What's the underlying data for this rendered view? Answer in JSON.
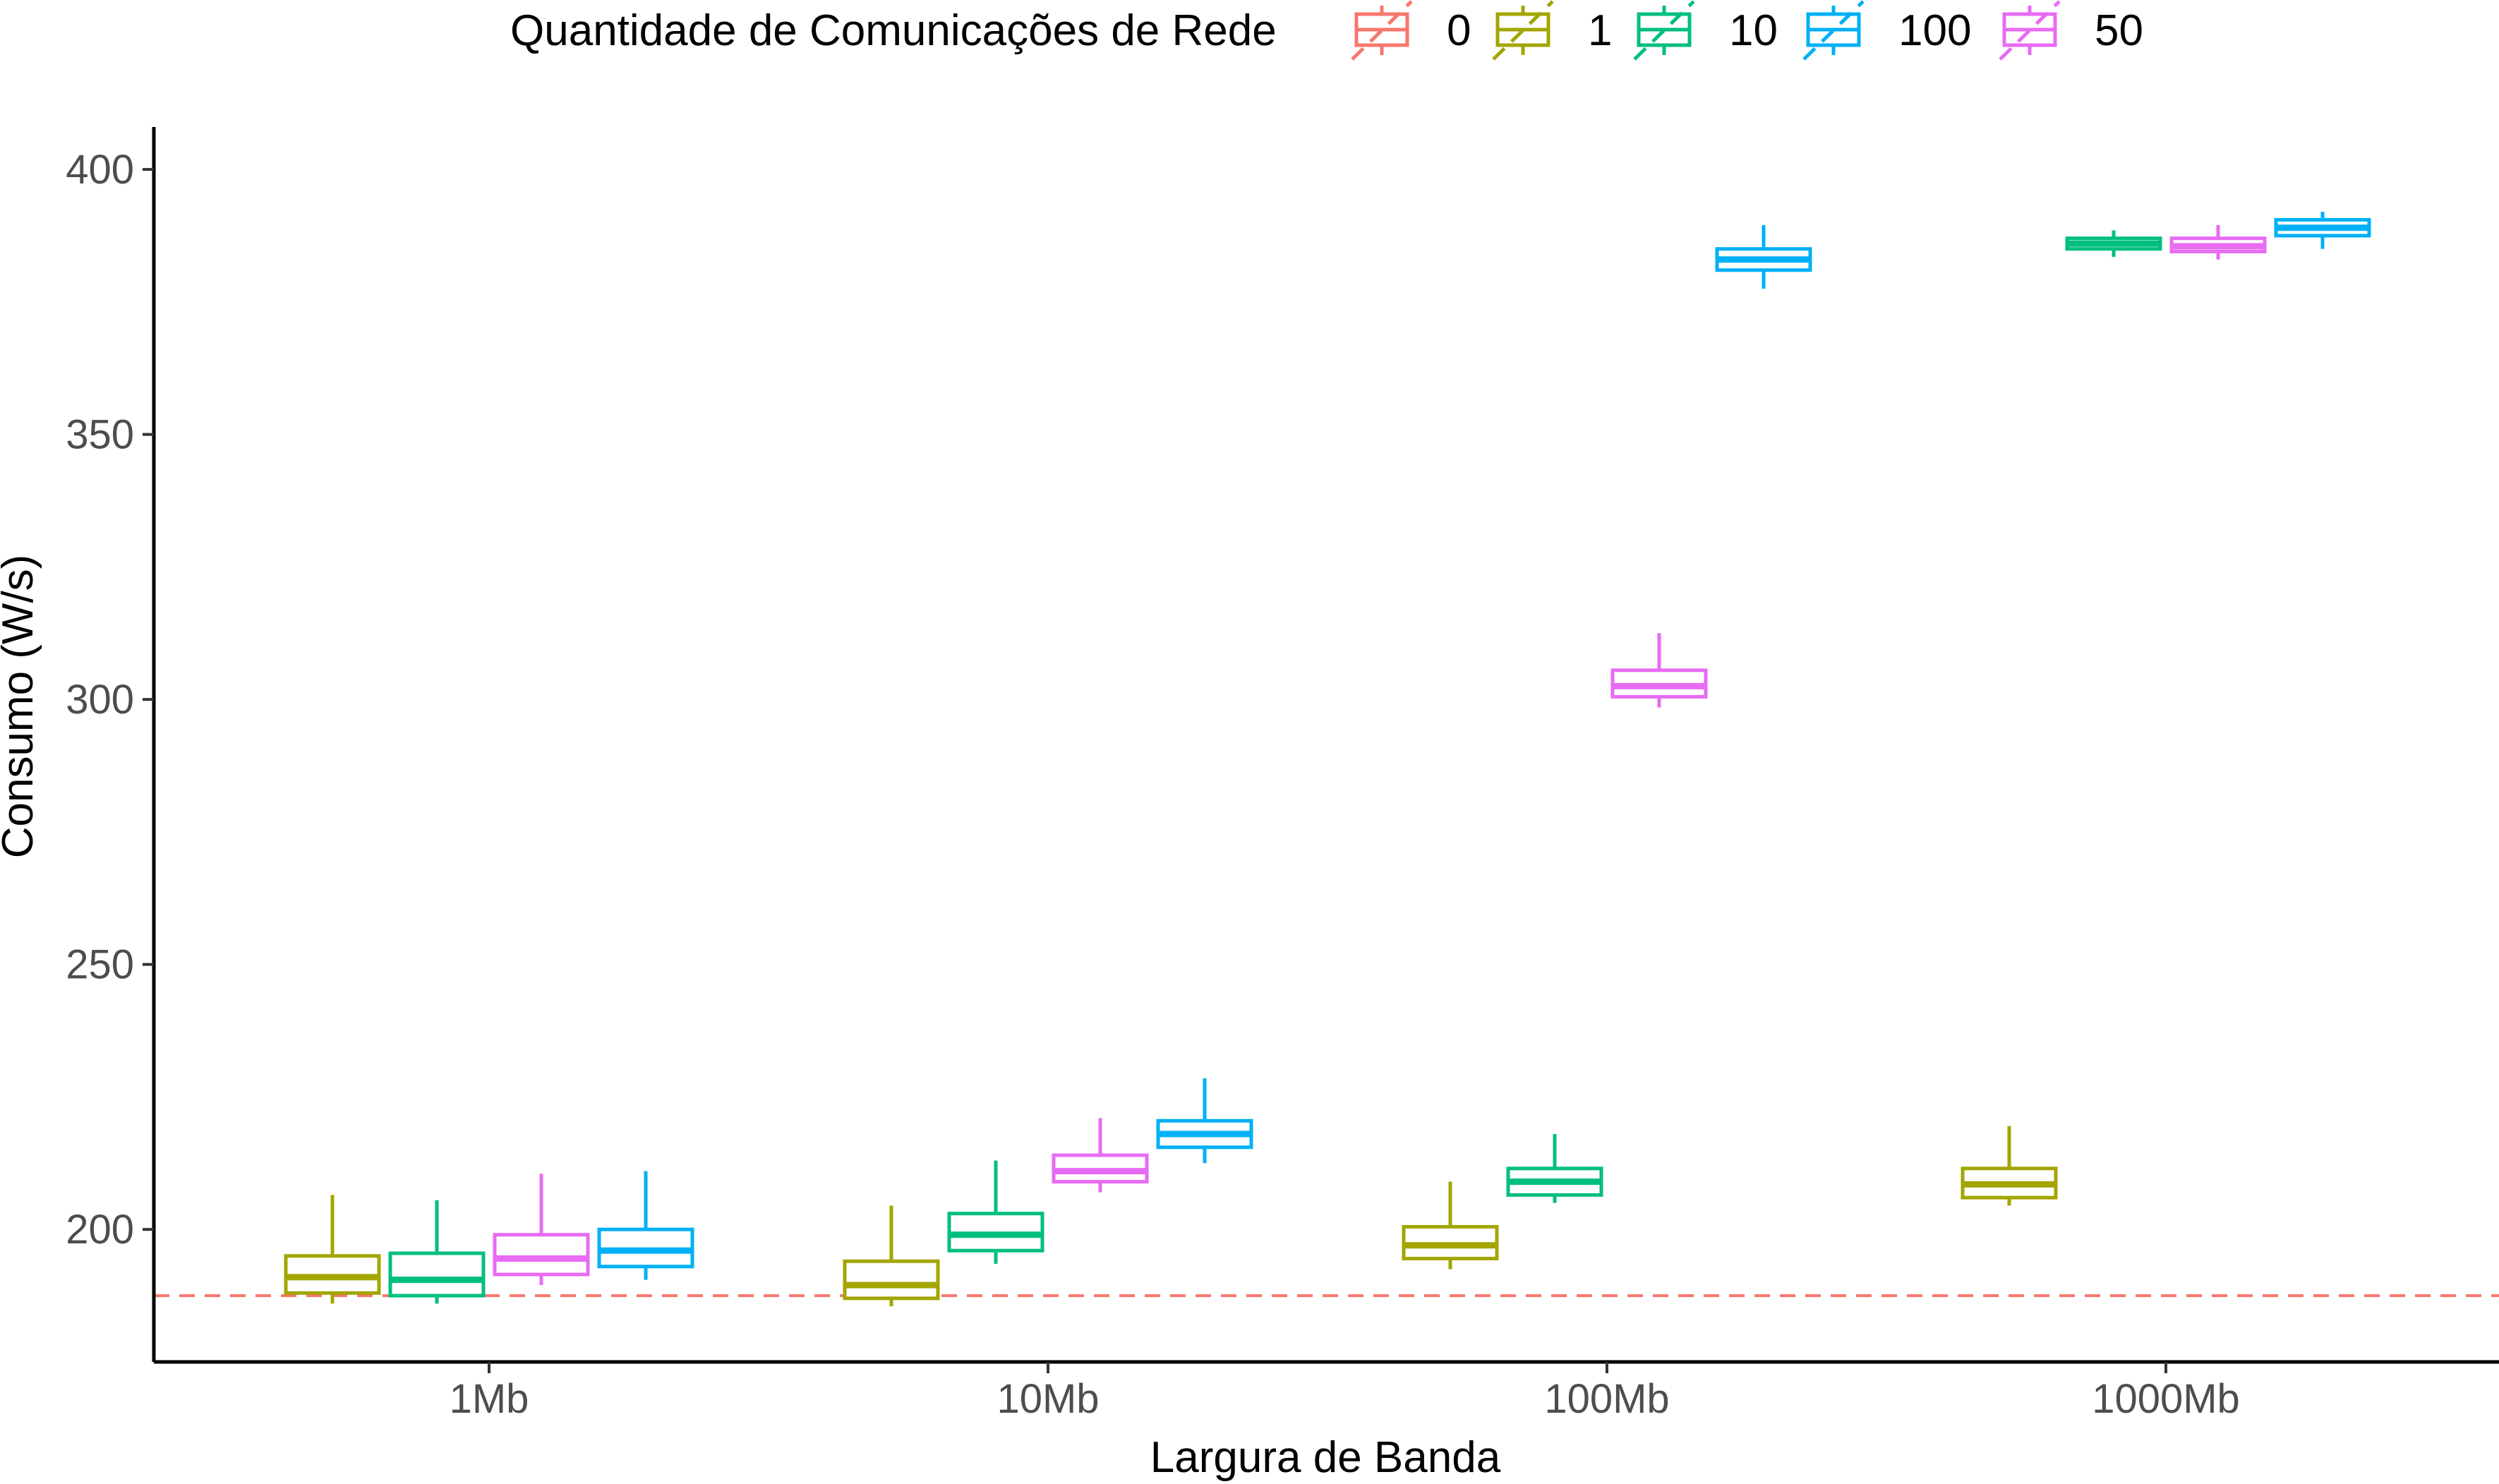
{
  "chart_data": {
    "type": "boxplot",
    "xlabel": "Largura de Banda",
    "ylabel": "Consumo (W/s)",
    "categories": [
      "1Mb",
      "10Mb",
      "100Mb",
      "1000Mb"
    ],
    "yticks": [
      "200",
      "250",
      "300",
      "350",
      "400"
    ],
    "ylim": [
      175,
      408
    ],
    "grid": false,
    "legend": {
      "title": "Quantidade de Comunicações de Rede",
      "position": "top",
      "labels": [
        "0",
        "1",
        "10",
        "100",
        "50"
      ]
    },
    "reference_line": {
      "series": "0",
      "value": 187.5,
      "style": "dashed"
    },
    "series": [
      {
        "key": "0",
        "color": "#F8766D",
        "boxes": []
      },
      {
        "key": "1",
        "color": "#A3A500",
        "boxes": [
          {
            "category": "1Mb",
            "min": 186,
            "q1": 188,
            "median": 191,
            "q3": 195,
            "max": 206.5
          },
          {
            "category": "10Mb",
            "min": 185.5,
            "q1": 187,
            "median": 189.5,
            "q3": 194,
            "max": 204.5
          },
          {
            "category": "100Mb",
            "min": 192.5,
            "q1": 194.5,
            "median": 197,
            "q3": 200.5,
            "max": 209
          },
          {
            "category": "1000Mb",
            "min": 204.5,
            "q1": 206,
            "median": 208.5,
            "q3": 211.5,
            "max": 219.5
          }
        ]
      },
      {
        "key": "10",
        "color": "#00BF7D",
        "boxes": [
          {
            "category": "1Mb",
            "min": 186,
            "q1": 187.5,
            "median": 190.5,
            "q3": 195.5,
            "max": 205.5
          },
          {
            "category": "10Mb",
            "min": 193.5,
            "q1": 196,
            "median": 199,
            "q3": 203,
            "max": 213
          },
          {
            "category": "100Mb",
            "min": 205,
            "q1": 206.5,
            "median": 209,
            "q3": 211.5,
            "max": 218
          },
          {
            "category": "1000Mb",
            "min": 383.5,
            "q1": 385,
            "median": 386,
            "q3": 387,
            "max": 388.5
          }
        ]
      },
      {
        "key": "100",
        "color": "#00B0F6",
        "boxes": [
          {
            "category": "1Mb",
            "min": 190.5,
            "q1": 193,
            "median": 196,
            "q3": 200,
            "max": 211
          },
          {
            "category": "10Mb",
            "min": 212.5,
            "q1": 215.5,
            "median": 218,
            "q3": 220.5,
            "max": 228.5
          },
          {
            "category": "100Mb",
            "min": 377.5,
            "q1": 381,
            "median": 383,
            "q3": 385,
            "max": 389.5
          },
          {
            "category": "1000Mb",
            "min": 385,
            "q1": 387.5,
            "median": 389,
            "q3": 390.5,
            "max": 392
          }
        ]
      },
      {
        "key": "50",
        "color": "#E76BF3",
        "boxes": [
          {
            "category": "1Mb",
            "min": 189.5,
            "q1": 191.5,
            "median": 194.5,
            "q3": 199,
            "max": 210.5
          },
          {
            "category": "10Mb",
            "min": 207,
            "q1": 209,
            "median": 211,
            "q3": 214,
            "max": 221
          },
          {
            "category": "100Mb",
            "min": 298.5,
            "q1": 300.5,
            "median": 302.5,
            "q3": 305.5,
            "max": 312.5
          },
          {
            "category": "1000Mb",
            "min": 383,
            "q1": 384.5,
            "median": 385.5,
            "q3": 387,
            "max": 389.5
          }
        ]
      }
    ]
  }
}
